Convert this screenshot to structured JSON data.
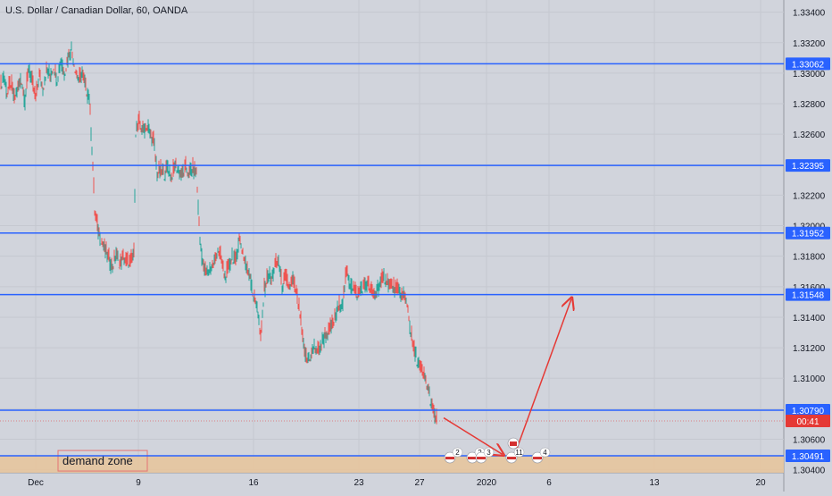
{
  "chart_title": "U.S. Dollar / Canadian Dollar, 60, OANDA",
  "colors": {
    "background": "#d1d4dc",
    "grid": "#c5c8d0",
    "level_line": "#2962ff",
    "label_bg": "#2962ff",
    "up_candle": "#26a69a",
    "down_candle": "#ef5350",
    "arrow": "#e53935",
    "demand_zone": "#e8c49a",
    "price_tag": "#e53935"
  },
  "chart_data": {
    "type": "line",
    "title": "U.S. Dollar / Canadian Dollar, 60, OANDA",
    "x_ticks": [
      "Dec",
      "9",
      "16",
      "23",
      "27",
      "2020",
      "6",
      "13",
      "20"
    ],
    "y_ticks": [
      "1.33400",
      "1.33200",
      "1.33000",
      "1.32800",
      "1.32600",
      "1.32400",
      "1.32200",
      "1.32000",
      "1.31800",
      "1.31600",
      "1.31400",
      "1.31200",
      "1.31000",
      "1.30800",
      "1.30600",
      "1.30400"
    ],
    "ylim": [
      1.3038,
      1.3348
    ],
    "horizontal_levels": [
      {
        "label": "1.33062",
        "value": 1.33062
      },
      {
        "label": "1.32395",
        "value": 1.32395
      },
      {
        "label": "1.31952",
        "value": 1.31952
      },
      {
        "label": "1.31548",
        "value": 1.31548
      },
      {
        "label": "1.30790",
        "value": 1.3079
      },
      {
        "label": "1.30491",
        "value": 1.30491
      }
    ],
    "current_price_tag": "00:41",
    "current_price": 1.3072,
    "series": [
      {
        "values": [
          [
            0,
            1.329
          ],
          [
            4,
            1.3298
          ],
          [
            8,
            1.3287
          ],
          [
            12,
            1.3294
          ],
          [
            16,
            1.3283
          ],
          [
            20,
            1.329
          ],
          [
            24,
            1.3296
          ],
          [
            28,
            1.3282
          ],
          [
            32,
            1.3304
          ],
          [
            36,
            1.3294
          ],
          [
            40,
            1.3284
          ],
          [
            44,
            1.3299
          ],
          [
            48,
            1.329
          ],
          [
            52,
            1.3302
          ],
          [
            56,
            1.3298
          ],
          [
            60,
            1.3305
          ],
          [
            64,
            1.3296
          ],
          [
            68,
            1.3308
          ],
          [
            72,
            1.33
          ],
          [
            76,
            1.331
          ],
          [
            80,
            1.3316
          ],
          [
            84,
            1.3304
          ],
          [
            88,
            1.3296
          ],
          [
            92,
            1.33
          ],
          [
            96,
            1.329
          ],
          [
            100,
            1.3284
          ],
          [
            104,
            1.324
          ],
          [
            106,
            1.321
          ],
          [
            110,
            1.3197
          ],
          [
            114,
            1.319
          ],
          [
            118,
            1.3183
          ],
          [
            122,
            1.3178
          ],
          [
            126,
            1.3173
          ],
          [
            130,
            1.3181
          ],
          [
            134,
            1.3175
          ],
          [
            138,
            1.3179
          ],
          [
            142,
            1.3177
          ],
          [
            146,
            1.3176
          ],
          [
            150,
            1.3182
          ],
          [
            152,
            1.3262
          ],
          [
            156,
            1.3268
          ],
          [
            160,
            1.3262
          ],
          [
            164,
            1.3266
          ],
          [
            168,
            1.326
          ],
          [
            172,
            1.3256
          ],
          [
            176,
            1.3234
          ],
          [
            180,
            1.3236
          ],
          [
            184,
            1.3234
          ],
          [
            188,
            1.3238
          ],
          [
            192,
            1.3232
          ],
          [
            196,
            1.324
          ],
          [
            200,
            1.3236
          ],
          [
            204,
            1.3233
          ],
          [
            208,
            1.3238
          ],
          [
            212,
            1.3234
          ],
          [
            216,
            1.3237
          ],
          [
            220,
            1.3235
          ],
          [
            224,
            1.319
          ],
          [
            228,
            1.3172
          ],
          [
            232,
            1.3169
          ],
          [
            236,
            1.3172
          ],
          [
            240,
            1.3176
          ],
          [
            244,
            1.3185
          ],
          [
            248,
            1.3178
          ],
          [
            252,
            1.3166
          ],
          [
            256,
            1.3172
          ],
          [
            260,
            1.318
          ],
          [
            264,
            1.3176
          ],
          [
            268,
            1.3192
          ],
          [
            272,
            1.3183
          ],
          [
            276,
            1.3172
          ],
          [
            280,
            1.3168
          ],
          [
            284,
            1.3153
          ],
          [
            288,
            1.3148
          ],
          [
            292,
            1.3125
          ],
          [
            296,
            1.3158
          ],
          [
            300,
            1.3168
          ],
          [
            304,
            1.3164
          ],
          [
            308,
            1.3174
          ],
          [
            312,
            1.3177
          ],
          [
            316,
            1.316
          ],
          [
            320,
            1.3166
          ],
          [
            324,
            1.316
          ],
          [
            328,
            1.3164
          ],
          [
            332,
            1.3156
          ],
          [
            336,
            1.3142
          ],
          [
            340,
            1.312
          ],
          [
            344,
            1.3112
          ],
          [
            348,
            1.3115
          ],
          [
            352,
            1.312
          ],
          [
            356,
            1.3118
          ],
          [
            360,
            1.3122
          ],
          [
            364,
            1.3128
          ],
          [
            368,
            1.313
          ],
          [
            372,
            1.3135
          ],
          [
            376,
            1.314
          ],
          [
            380,
            1.3148
          ],
          [
            384,
            1.315
          ],
          [
            388,
            1.317
          ],
          [
            392,
            1.3162
          ],
          [
            396,
            1.316
          ],
          [
            400,
            1.3155
          ],
          [
            404,
            1.3158
          ],
          [
            408,
            1.316
          ],
          [
            412,
            1.3162
          ],
          [
            416,
            1.3157
          ],
          [
            420,
            1.3155
          ],
          [
            424,
            1.316
          ],
          [
            428,
            1.3164
          ],
          [
            432,
            1.3166
          ],
          [
            436,
            1.3162
          ],
          [
            440,
            1.316
          ],
          [
            444,
            1.3158
          ],
          [
            448,
            1.3156
          ],
          [
            452,
            1.3154
          ],
          [
            456,
            1.315
          ],
          [
            460,
            1.313
          ],
          [
            464,
            1.3118
          ],
          [
            468,
            1.311
          ],
          [
            472,
            1.3105
          ],
          [
            476,
            1.31
          ],
          [
            480,
            1.3092
          ],
          [
            484,
            1.308
          ],
          [
            488,
            1.3074
          ],
          [
            490,
            1.3072
          ]
        ]
      }
    ],
    "annotations": [
      {
        "type": "arrow",
        "from": [
          497,
          1.3074
        ],
        "to": [
          563,
          1.305
        ]
      },
      {
        "type": "arrow",
        "from": [
          576,
          1.3049
        ],
        "to": [
          640,
          1.3152
        ]
      },
      {
        "type": "label",
        "text": "demand zone"
      }
    ]
  },
  "event_badges": [
    "2",
    "2",
    "3",
    "11",
    "4"
  ],
  "demand_zone_label": "demand zone"
}
